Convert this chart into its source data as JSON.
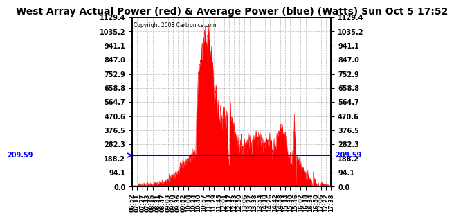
{
  "title": "West Array Actual Power (red) & Average Power (blue) (Watts) Sun Oct 5 17:52",
  "copyright": "Copyright 2008 Cartronics.com",
  "avg_power": 209.59,
  "ymax": 1129.4,
  "ymin": 0.0,
  "yticks": [
    0.0,
    94.1,
    188.2,
    282.3,
    376.5,
    470.6,
    564.7,
    658.8,
    752.9,
    847.0,
    941.1,
    1035.2,
    1129.4
  ],
  "red_color": "#FF0000",
  "blue_color": "#0000FF",
  "bg_color": "#FFFFFF",
  "grid_color": "#AAAAAA",
  "title_fontsize": 10,
  "avg_label": "209.59",
  "x_labels": [
    "06:52",
    "07:11",
    "07:27",
    "07:43",
    "08:15",
    "08:31",
    "08:47",
    "09:03",
    "09:20",
    "09:36",
    "09:52",
    "10:08",
    "10:24",
    "10:40",
    "10:57",
    "11:13",
    "11:29",
    "11:45",
    "12:01",
    "12:17",
    "12:33",
    "12:50",
    "13:06",
    "13:22",
    "13:38",
    "13:54",
    "14:10",
    "14:26",
    "14:42",
    "14:58",
    "15:14",
    "15:30",
    "15:46",
    "16:02",
    "16:18",
    "16:34",
    "16:50",
    "17:06",
    "17:22",
    "17:38"
  ],
  "n_points": 640
}
